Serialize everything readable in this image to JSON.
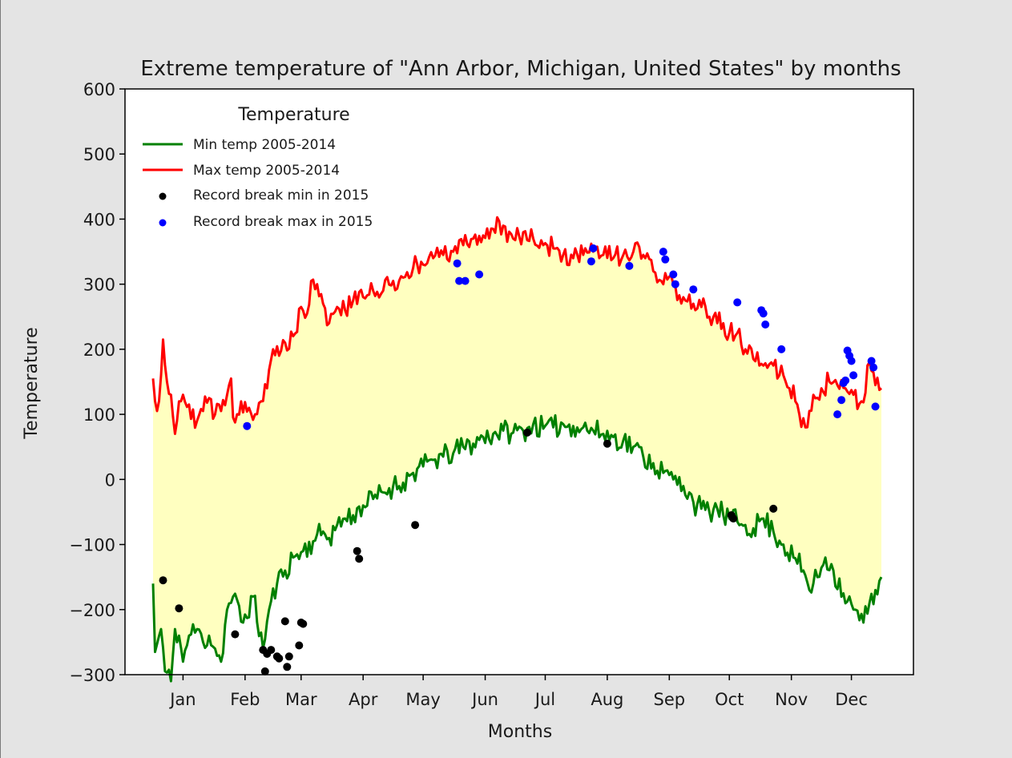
{
  "chart_data": {
    "type": "line",
    "title": "Extreme temperature of \"Ann Arbor, Michigan, United States\" by months",
    "xlabel": "Months",
    "ylabel": "Temperature",
    "ylim": [
      -300,
      600
    ],
    "yticks": [
      "600",
      "500",
      "400",
      "300",
      "200",
      "100",
      "0",
      "−100",
      "−200",
      "−300"
    ],
    "ytick_values": [
      600,
      500,
      400,
      300,
      200,
      100,
      0,
      -100,
      -200,
      -300
    ],
    "xticks": [
      "Jan",
      "Feb",
      "Mar",
      "Apr",
      "May",
      "Jun",
      "Jul",
      "Aug",
      "Sep",
      "Oct",
      "Nov",
      "Dec"
    ],
    "xtick_days": [
      15,
      46,
      74,
      105,
      135,
      166,
      196,
      227,
      258,
      288,
      319,
      349
    ],
    "xlim": [
      -14,
      380
    ],
    "fill_between": {
      "color": "#ffffc0"
    },
    "legend": {
      "title": "Temperature",
      "location": "top-left"
    },
    "series": [
      {
        "name": "Min temp 2005-2014",
        "color": "#008000",
        "keypoints": [
          [
            0,
            -160
          ],
          [
            1,
            -265
          ],
          [
            4,
            -230
          ],
          [
            6,
            -295
          ],
          [
            9,
            -310
          ],
          [
            11,
            -230
          ],
          [
            13,
            -240
          ],
          [
            15,
            -280
          ],
          [
            18,
            -240
          ],
          [
            22,
            -230
          ],
          [
            25,
            -250
          ],
          [
            28,
            -240
          ],
          [
            31,
            -260
          ],
          [
            34,
            -280
          ],
          [
            37,
            -200
          ],
          [
            40,
            -180
          ],
          [
            45,
            -220
          ],
          [
            50,
            -180
          ],
          [
            55,
            -260
          ],
          [
            58,
            -200
          ],
          [
            62,
            -160
          ],
          [
            66,
            -140
          ],
          [
            70,
            -120
          ],
          [
            75,
            -110
          ],
          [
            80,
            -95
          ],
          [
            85,
            -80
          ],
          [
            88,
            -90
          ],
          [
            92,
            -70
          ],
          [
            96,
            -60
          ],
          [
            100,
            -55
          ],
          [
            105,
            -40
          ],
          [
            110,
            -30
          ],
          [
            115,
            -20
          ],
          [
            120,
            -10
          ],
          [
            125,
            -5
          ],
          [
            130,
            10
          ],
          [
            135,
            20
          ],
          [
            140,
            30
          ],
          [
            145,
            35
          ],
          [
            150,
            40
          ],
          [
            155,
            50
          ],
          [
            160,
            55
          ],
          [
            165,
            65
          ],
          [
            170,
            70
          ],
          [
            175,
            75
          ],
          [
            180,
            72
          ],
          [
            185,
            75
          ],
          [
            190,
            85
          ],
          [
            195,
            78
          ],
          [
            200,
            80
          ],
          [
            205,
            85
          ],
          [
            210,
            82
          ],
          [
            215,
            80
          ],
          [
            220,
            75
          ],
          [
            225,
            70
          ],
          [
            230,
            65
          ],
          [
            235,
            60
          ],
          [
            240,
            50
          ],
          [
            245,
            35
          ],
          [
            250,
            25
          ],
          [
            255,
            10
          ],
          [
            260,
            0
          ],
          [
            265,
            -10
          ],
          [
            268,
            -20
          ],
          [
            270,
            -35
          ],
          [
            274,
            -45
          ],
          [
            278,
            -50
          ],
          [
            282,
            -45
          ],
          [
            285,
            -55
          ],
          [
            288,
            -60
          ],
          [
            292,
            -65
          ],
          [
            296,
            -70
          ],
          [
            300,
            -75
          ],
          [
            305,
            -60
          ],
          [
            310,
            -80
          ],
          [
            315,
            -100
          ],
          [
            320,
            -120
          ],
          [
            325,
            -140
          ],
          [
            328,
            -170
          ],
          [
            332,
            -150
          ],
          [
            336,
            -120
          ],
          [
            340,
            -140
          ],
          [
            345,
            -175
          ],
          [
            350,
            -200
          ],
          [
            355,
            -220
          ],
          [
            358,
            -190
          ],
          [
            361,
            -170
          ],
          [
            364,
            -150
          ]
        ]
      },
      {
        "name": "Max temp 2005-2014",
        "color": "#ff0000",
        "keypoints": [
          [
            0,
            155
          ],
          [
            2,
            105
          ],
          [
            4,
            160
          ],
          [
            5,
            215
          ],
          [
            7,
            150
          ],
          [
            9,
            130
          ],
          [
            11,
            70
          ],
          [
            13,
            120
          ],
          [
            15,
            130
          ],
          [
            18,
            115
          ],
          [
            22,
            90
          ],
          [
            25,
            105
          ],
          [
            28,
            125
          ],
          [
            31,
            100
          ],
          [
            34,
            105
          ],
          [
            37,
            130
          ],
          [
            39,
            155
          ],
          [
            40,
            95
          ],
          [
            44,
            120
          ],
          [
            48,
            110
          ],
          [
            51,
            100
          ],
          [
            54,
            120
          ],
          [
            57,
            140
          ],
          [
            60,
            200
          ],
          [
            63,
            190
          ],
          [
            66,
            210
          ],
          [
            70,
            220
          ],
          [
            74,
            265
          ],
          [
            77,
            255
          ],
          [
            79,
            305
          ],
          [
            82,
            300
          ],
          [
            85,
            270
          ],
          [
            88,
            240
          ],
          [
            92,
            265
          ],
          [
            96,
            260
          ],
          [
            100,
            275
          ],
          [
            105,
            280
          ],
          [
            110,
            290
          ],
          [
            115,
            290
          ],
          [
            120,
            305
          ],
          [
            125,
            310
          ],
          [
            130,
            325
          ],
          [
            135,
            330
          ],
          [
            140,
            340
          ],
          [
            145,
            345
          ],
          [
            150,
            350
          ],
          [
            155,
            360
          ],
          [
            160,
            370
          ],
          [
            165,
            375
          ],
          [
            170,
            385
          ],
          [
            175,
            390
          ],
          [
            180,
            370
          ],
          [
            185,
            380
          ],
          [
            190,
            370
          ],
          [
            195,
            360
          ],
          [
            200,
            355
          ],
          [
            205,
            345
          ],
          [
            210,
            340
          ],
          [
            215,
            345
          ],
          [
            220,
            350
          ],
          [
            225,
            345
          ],
          [
            230,
            340
          ],
          [
            235,
            345
          ],
          [
            240,
            350
          ],
          [
            245,
            345
          ],
          [
            250,
            320
          ],
          [
            255,
            300
          ],
          [
            260,
            300
          ],
          [
            265,
            280
          ],
          [
            270,
            270
          ],
          [
            274,
            265
          ],
          [
            278,
            250
          ],
          [
            282,
            240
          ],
          [
            285,
            240
          ],
          [
            288,
            225
          ],
          [
            292,
            225
          ],
          [
            296,
            200
          ],
          [
            300,
            185
          ],
          [
            305,
            175
          ],
          [
            310,
            175
          ],
          [
            315,
            160
          ],
          [
            318,
            140
          ],
          [
            322,
            115
          ],
          [
            326,
            80
          ],
          [
            330,
            130
          ],
          [
            334,
            140
          ],
          [
            338,
            150
          ],
          [
            342,
            145
          ],
          [
            346,
            140
          ],
          [
            350,
            130
          ],
          [
            354,
            120
          ],
          [
            358,
            180
          ],
          [
            361,
            145
          ],
          [
            364,
            140
          ]
        ]
      },
      {
        "name": "Record break min in 2015",
        "color": "#000000",
        "type": "scatter",
        "points": [
          [
            5,
            -155
          ],
          [
            13,
            -198
          ],
          [
            41,
            -238
          ],
          [
            55,
            -262
          ],
          [
            56,
            -295
          ],
          [
            57,
            -268
          ],
          [
            59,
            -262
          ],
          [
            62,
            -272
          ],
          [
            63,
            -275
          ],
          [
            66,
            -218
          ],
          [
            67,
            -288
          ],
          [
            68,
            -272
          ],
          [
            73,
            -255
          ],
          [
            74,
            -220
          ],
          [
            75,
            -222
          ],
          [
            102,
            -110
          ],
          [
            103,
            -122
          ],
          [
            131,
            -70
          ],
          [
            187,
            72
          ],
          [
            227,
            55
          ],
          [
            289,
            -55
          ],
          [
            290,
            -60
          ],
          [
            310,
            -45
          ]
        ]
      },
      {
        "name": "Record break max in 2015",
        "color": "#0000ff",
        "type": "scatter",
        "points": [
          [
            47,
            82
          ],
          [
            152,
            332
          ],
          [
            153,
            305
          ],
          [
            156,
            305
          ],
          [
            163,
            315
          ],
          [
            219,
            335
          ],
          [
            220,
            355
          ],
          [
            238,
            328
          ],
          [
            255,
            350
          ],
          [
            256,
            338
          ],
          [
            260,
            315
          ],
          [
            261,
            300
          ],
          [
            270,
            292
          ],
          [
            292,
            272
          ],
          [
            304,
            260
          ],
          [
            305,
            255
          ],
          [
            306,
            238
          ],
          [
            314,
            200
          ],
          [
            342,
            100
          ],
          [
            344,
            122
          ],
          [
            345,
            148
          ],
          [
            346,
            152
          ],
          [
            347,
            198
          ],
          [
            348,
            190
          ],
          [
            349,
            182
          ],
          [
            350,
            160
          ],
          [
            359,
            182
          ],
          [
            360,
            172
          ],
          [
            361,
            112
          ]
        ]
      }
    ]
  }
}
